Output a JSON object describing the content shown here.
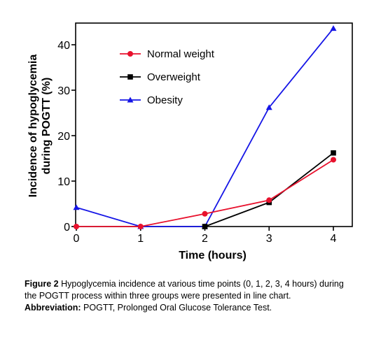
{
  "chart_data": {
    "type": "line",
    "xlabel": "Time (hours)",
    "ylabel": [
      "Incidence of hypoglycemia",
      "during POGTT (%)"
    ],
    "x": [
      0,
      1,
      2,
      3,
      4
    ],
    "xlim": [
      0,
      4
    ],
    "ylim": [
      0,
      45
    ],
    "xticks": [
      "0",
      "1",
      "2",
      "3",
      "4"
    ],
    "yticks": [
      "0",
      "10",
      "20",
      "30",
      "40"
    ],
    "grid": false,
    "legend_position": "top-left",
    "series": [
      {
        "name": "Normal weight",
        "color": "#e8112d",
        "marker": "circle",
        "points": [
          [
            0,
            0
          ],
          [
            1,
            0
          ],
          [
            2,
            2.8
          ],
          [
            3,
            5.8
          ],
          [
            4,
            14.7
          ]
        ]
      },
      {
        "name": "Overweight",
        "color": "#000000",
        "marker": "square",
        "points": [
          [
            2,
            0
          ],
          [
            3,
            5.3
          ],
          [
            4,
            16.2
          ]
        ]
      },
      {
        "name": "Obesity",
        "color": "#1515e6",
        "marker": "triangle",
        "points": [
          [
            0,
            4.2
          ],
          [
            1,
            0
          ],
          [
            2,
            0
          ],
          [
            3,
            26.2
          ],
          [
            4,
            43.6
          ]
        ]
      }
    ]
  },
  "caption": {
    "figure_label": "Figure 2",
    "figure_text": "Hypoglycemia incidence at various time points (0, 1, 2, 3, 4 hours) during the POGTT process within three groups were presented in line chart.",
    "abbreviation_label": "Abbreviation:",
    "abbreviation_text": "POGTT, Prolonged Oral Glucose Tolerance Test."
  }
}
